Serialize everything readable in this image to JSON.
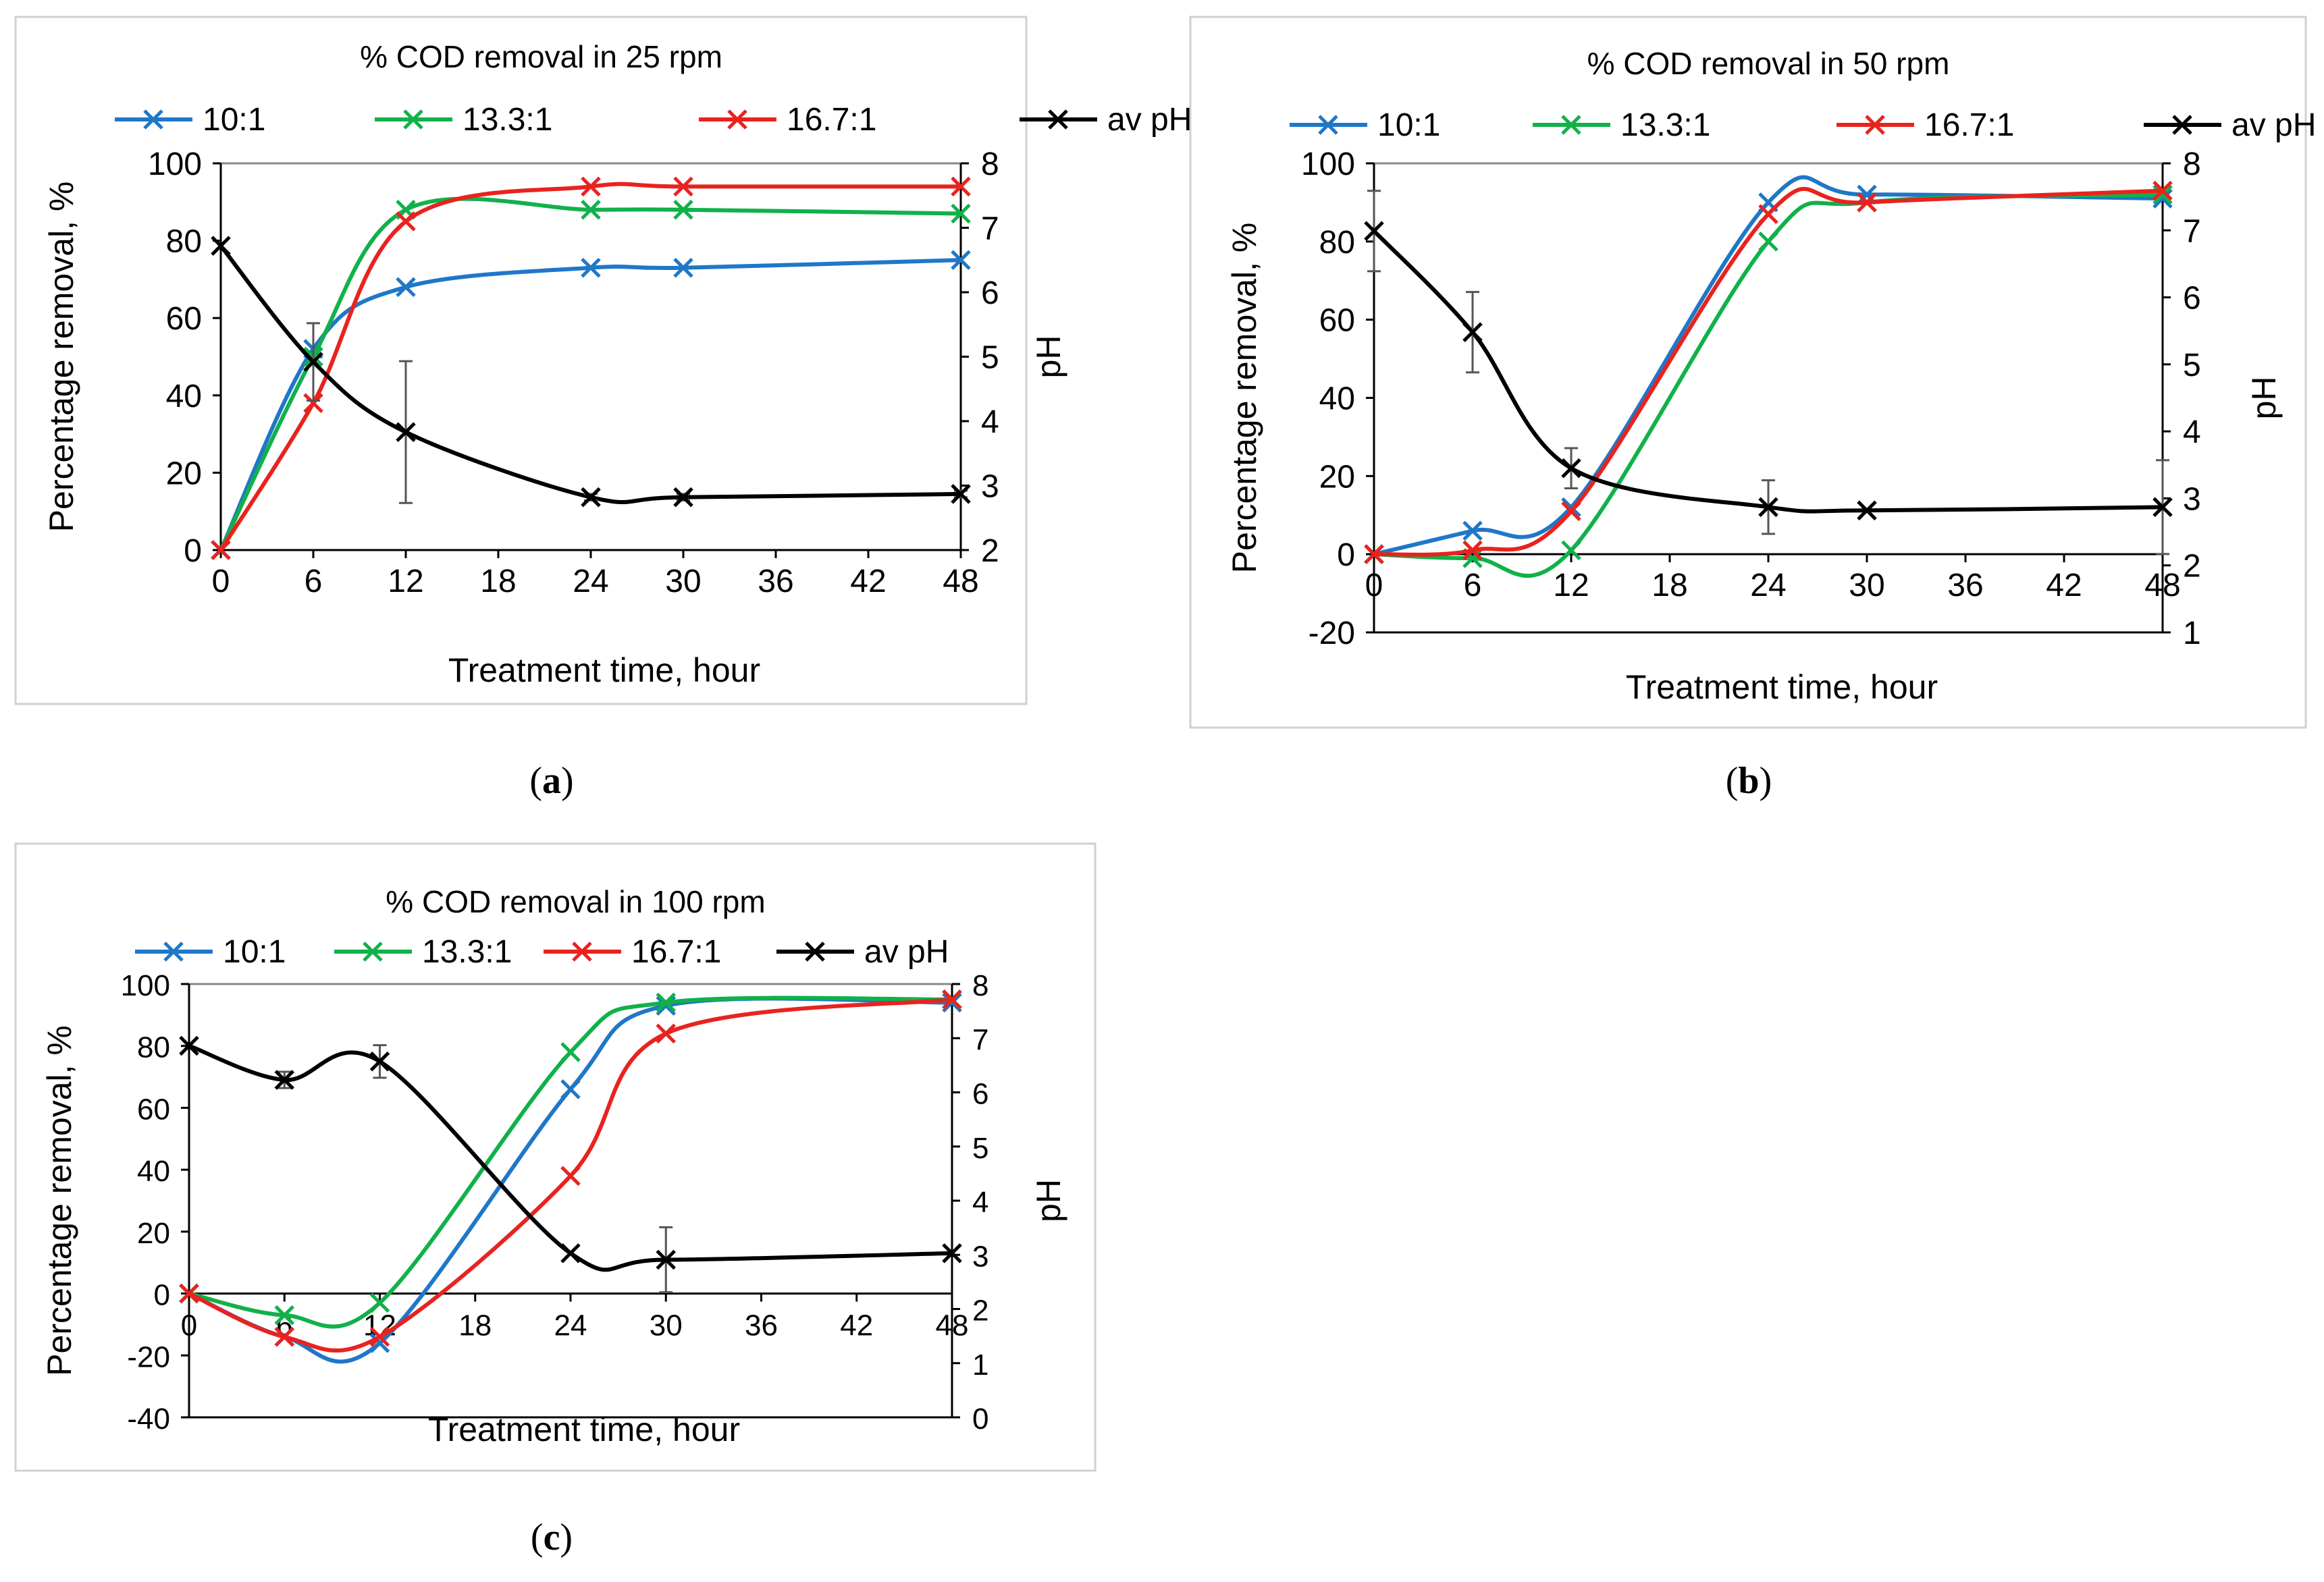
{
  "panels": [
    {
      "label": "a"
    },
    {
      "label": "b"
    },
    {
      "label": "c"
    }
  ],
  "legend": {
    "entries": [
      {
        "name": "10:1",
        "color": "#1f77c8"
      },
      {
        "name": "13.3:1",
        "color": "#11b14a"
      },
      {
        "name": "16.7:1",
        "color": "#e8231f"
      },
      {
        "name": "av pH",
        "color": "#000000"
      }
    ]
  },
  "chart_data": [
    {
      "type": "line",
      "title": "% COD removal in 25 rpm",
      "xlabel": "Treatment time, hour",
      "ylabel": "Percentage removal, %",
      "y2label": "pH",
      "x": [
        0,
        6,
        12,
        24,
        30,
        48
      ],
      "xticks": [
        "0",
        "6",
        "12",
        "18",
        "24",
        "30",
        "36",
        "42",
        "48"
      ],
      "xlim": [
        0,
        48
      ],
      "ylim": [
        0,
        100
      ],
      "yticks": [
        "0",
        "20",
        "40",
        "60",
        "80",
        "100"
      ],
      "y2lim": [
        2,
        8
      ],
      "y2ticks": [
        "2",
        "3",
        "4",
        "5",
        "6",
        "7",
        "8"
      ],
      "series": [
        {
          "name": "10:1",
          "values": [
            0,
            52,
            68,
            73,
            73,
            75
          ],
          "color": "#1f77c8"
        },
        {
          "name": "13.3:1",
          "values": [
            0,
            50,
            88,
            88,
            88,
            87
          ],
          "color": "#11b14a"
        },
        {
          "name": "16.7:1",
          "values": [
            0,
            38,
            85,
            94,
            94,
            94
          ],
          "color": "#e8231f"
        },
        {
          "name": "av pH",
          "axis": "right",
          "values": [
            6.72,
            4.92,
            3.83,
            2.82,
            2.82,
            2.87
          ],
          "color": "#000000",
          "error": [
            0,
            0.6,
            1.1,
            0.05,
            0.05,
            0.05
          ]
        }
      ]
    },
    {
      "type": "line",
      "title": "% COD removal in 50 rpm",
      "xlabel": "Treatment time, hour",
      "ylabel": "Percentage removal, %",
      "y2label": "pH",
      "x": [
        0,
        6,
        12,
        24,
        30,
        48
      ],
      "xticks": [
        "0",
        "6",
        "12",
        "18",
        "24",
        "30",
        "36",
        "42",
        "48"
      ],
      "xlim": [
        0,
        48
      ],
      "ylim": [
        -20,
        100
      ],
      "yticks": [
        "-20",
        "0",
        "20",
        "40",
        "60",
        "80",
        "100"
      ],
      "y2lim": [
        1,
        8
      ],
      "y2ticks": [
        "1",
        "2",
        "3",
        "4",
        "5",
        "6",
        "7",
        "8"
      ],
      "series": [
        {
          "name": "10:1",
          "values": [
            0,
            6,
            12,
            90,
            92,
            91
          ],
          "color": "#1f77c8"
        },
        {
          "name": "13.3:1",
          "values": [
            0,
            -1,
            1,
            80,
            90,
            92
          ],
          "color": "#11b14a"
        },
        {
          "name": "16.7:1",
          "values": [
            0,
            1,
            11,
            87,
            90,
            93
          ],
          "color": "#e8231f"
        },
        {
          "name": "av pH",
          "axis": "right",
          "values": [
            6.99,
            5.48,
            3.45,
            2.87,
            2.82,
            2.87
          ],
          "color": "#000000",
          "error": [
            0.6,
            0.6,
            0.3,
            0.4,
            0,
            0.7
          ]
        }
      ]
    },
    {
      "type": "line",
      "title": "% COD removal in 100 rpm",
      "xlabel": "Treatment time, hour",
      "ylabel": "Percentage removal, %",
      "y2label": "pH",
      "x": [
        0,
        6,
        12,
        24,
        30,
        48
      ],
      "xticks": [
        "0",
        "6",
        "12",
        "18",
        "24",
        "30",
        "36",
        "42",
        "48"
      ],
      "xlim": [
        0,
        48
      ],
      "ylim": [
        -40,
        100
      ],
      "yticks": [
        "-40",
        "-20",
        "0",
        "20",
        "40",
        "60",
        "80",
        "100"
      ],
      "y2lim": [
        0,
        8
      ],
      "y2ticks": [
        "0",
        "1",
        "2",
        "3",
        "4",
        "5",
        "6",
        "7",
        "8"
      ],
      "series": [
        {
          "name": "10:1",
          "values": [
            0,
            -14,
            -16,
            66,
            93,
            94
          ],
          "color": "#1f77c8"
        },
        {
          "name": "13.3:1",
          "values": [
            0,
            -7,
            -3,
            78,
            94,
            95
          ],
          "color": "#11b14a"
        },
        {
          "name": "16.7:1",
          "values": [
            0,
            -14,
            -14,
            38,
            84,
            95
          ],
          "color": "#e8231f"
        },
        {
          "name": "av pH",
          "axis": "right",
          "values": [
            6.86,
            6.23,
            6.57,
            3.03,
            2.91,
            3.03
          ],
          "color": "#000000",
          "error": [
            0,
            0.15,
            0.3,
            0,
            0.6,
            0
          ]
        }
      ]
    }
  ]
}
